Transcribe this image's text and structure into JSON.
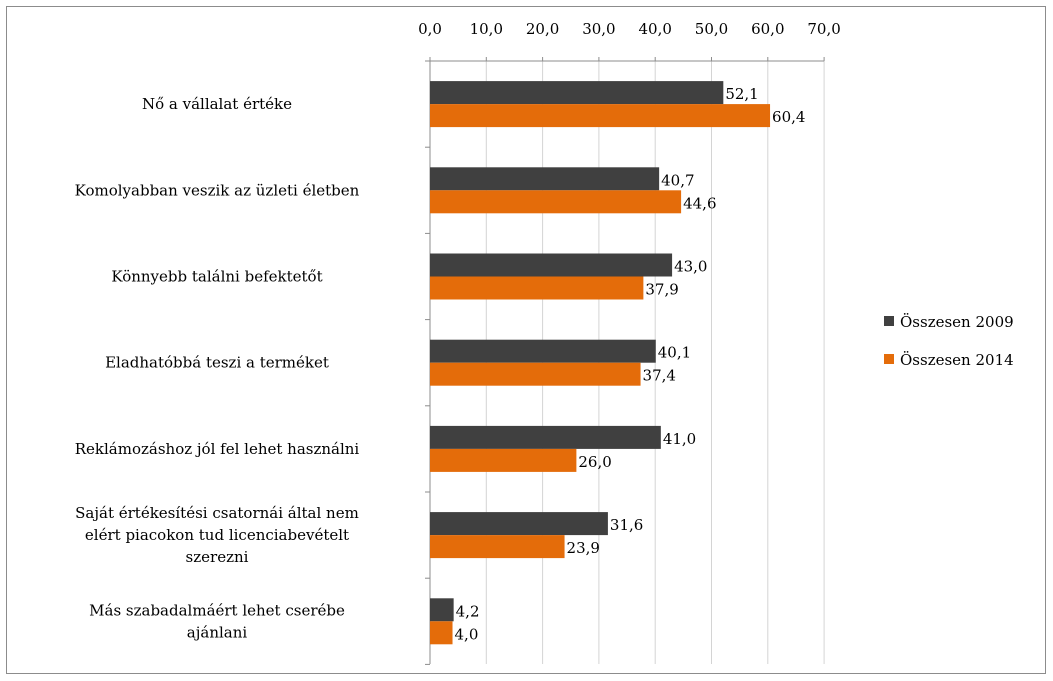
{
  "chart_data": {
    "type": "bar",
    "orientation": "horizontal",
    "title": "",
    "xlabel": "",
    "ylabel": "",
    "xlim": [
      0,
      70
    ],
    "x_ticks": [
      "0,0",
      "10,0",
      "20,0",
      "30,0",
      "40,0",
      "50,0",
      "60,0",
      "70,0"
    ],
    "x_axis_position": "top",
    "grid": "vertical",
    "legend_position": "right",
    "categories": [
      "Nő a vállalat értéke",
      "Komolyabban veszik az üzleti életben",
      "Könnyebb találni befektetőt",
      "Eladhatóbbá teszi a terméket",
      "Reklámozáshoz jól fel lehet használni",
      "Saját értékesítési csatornái által nem elért piacokon tud licenciabevételt szerezni",
      "Más szabadalmáért lehet cserébe ajánlani"
    ],
    "category_lines": [
      [
        "Nő a vállalat értéke"
      ],
      [
        "Komolyabban veszik az üzleti életben"
      ],
      [
        "Könnyebb találni befektetőt"
      ],
      [
        "Eladhatóbbá teszi a terméket"
      ],
      [
        "Reklámozáshoz jól fel lehet használni"
      ],
      [
        "Saját értékesítési csatornái által nem",
        "elért piacokon tud licenciabevételt",
        "szerezni"
      ],
      [
        "Más szabadalmáért lehet cserébe",
        "ajánlani"
      ]
    ],
    "series": [
      {
        "name": "Összesen 2009",
        "color": "#404040",
        "values": [
          52.1,
          40.7,
          43.0,
          40.1,
          41.0,
          31.6,
          4.2
        ],
        "labels": [
          "52,1",
          "40,7",
          "43,0",
          "40,1",
          "41,0",
          "31,6",
          "4,2"
        ]
      },
      {
        "name": "Összesen 2014",
        "color": "#e46c0a",
        "values": [
          60.4,
          44.6,
          37.9,
          37.4,
          26.0,
          23.9,
          4.0
        ],
        "labels": [
          "60,4",
          "44,6",
          "37,9",
          "37,4",
          "26,0",
          "23,9",
          "4,0"
        ]
      }
    ]
  }
}
